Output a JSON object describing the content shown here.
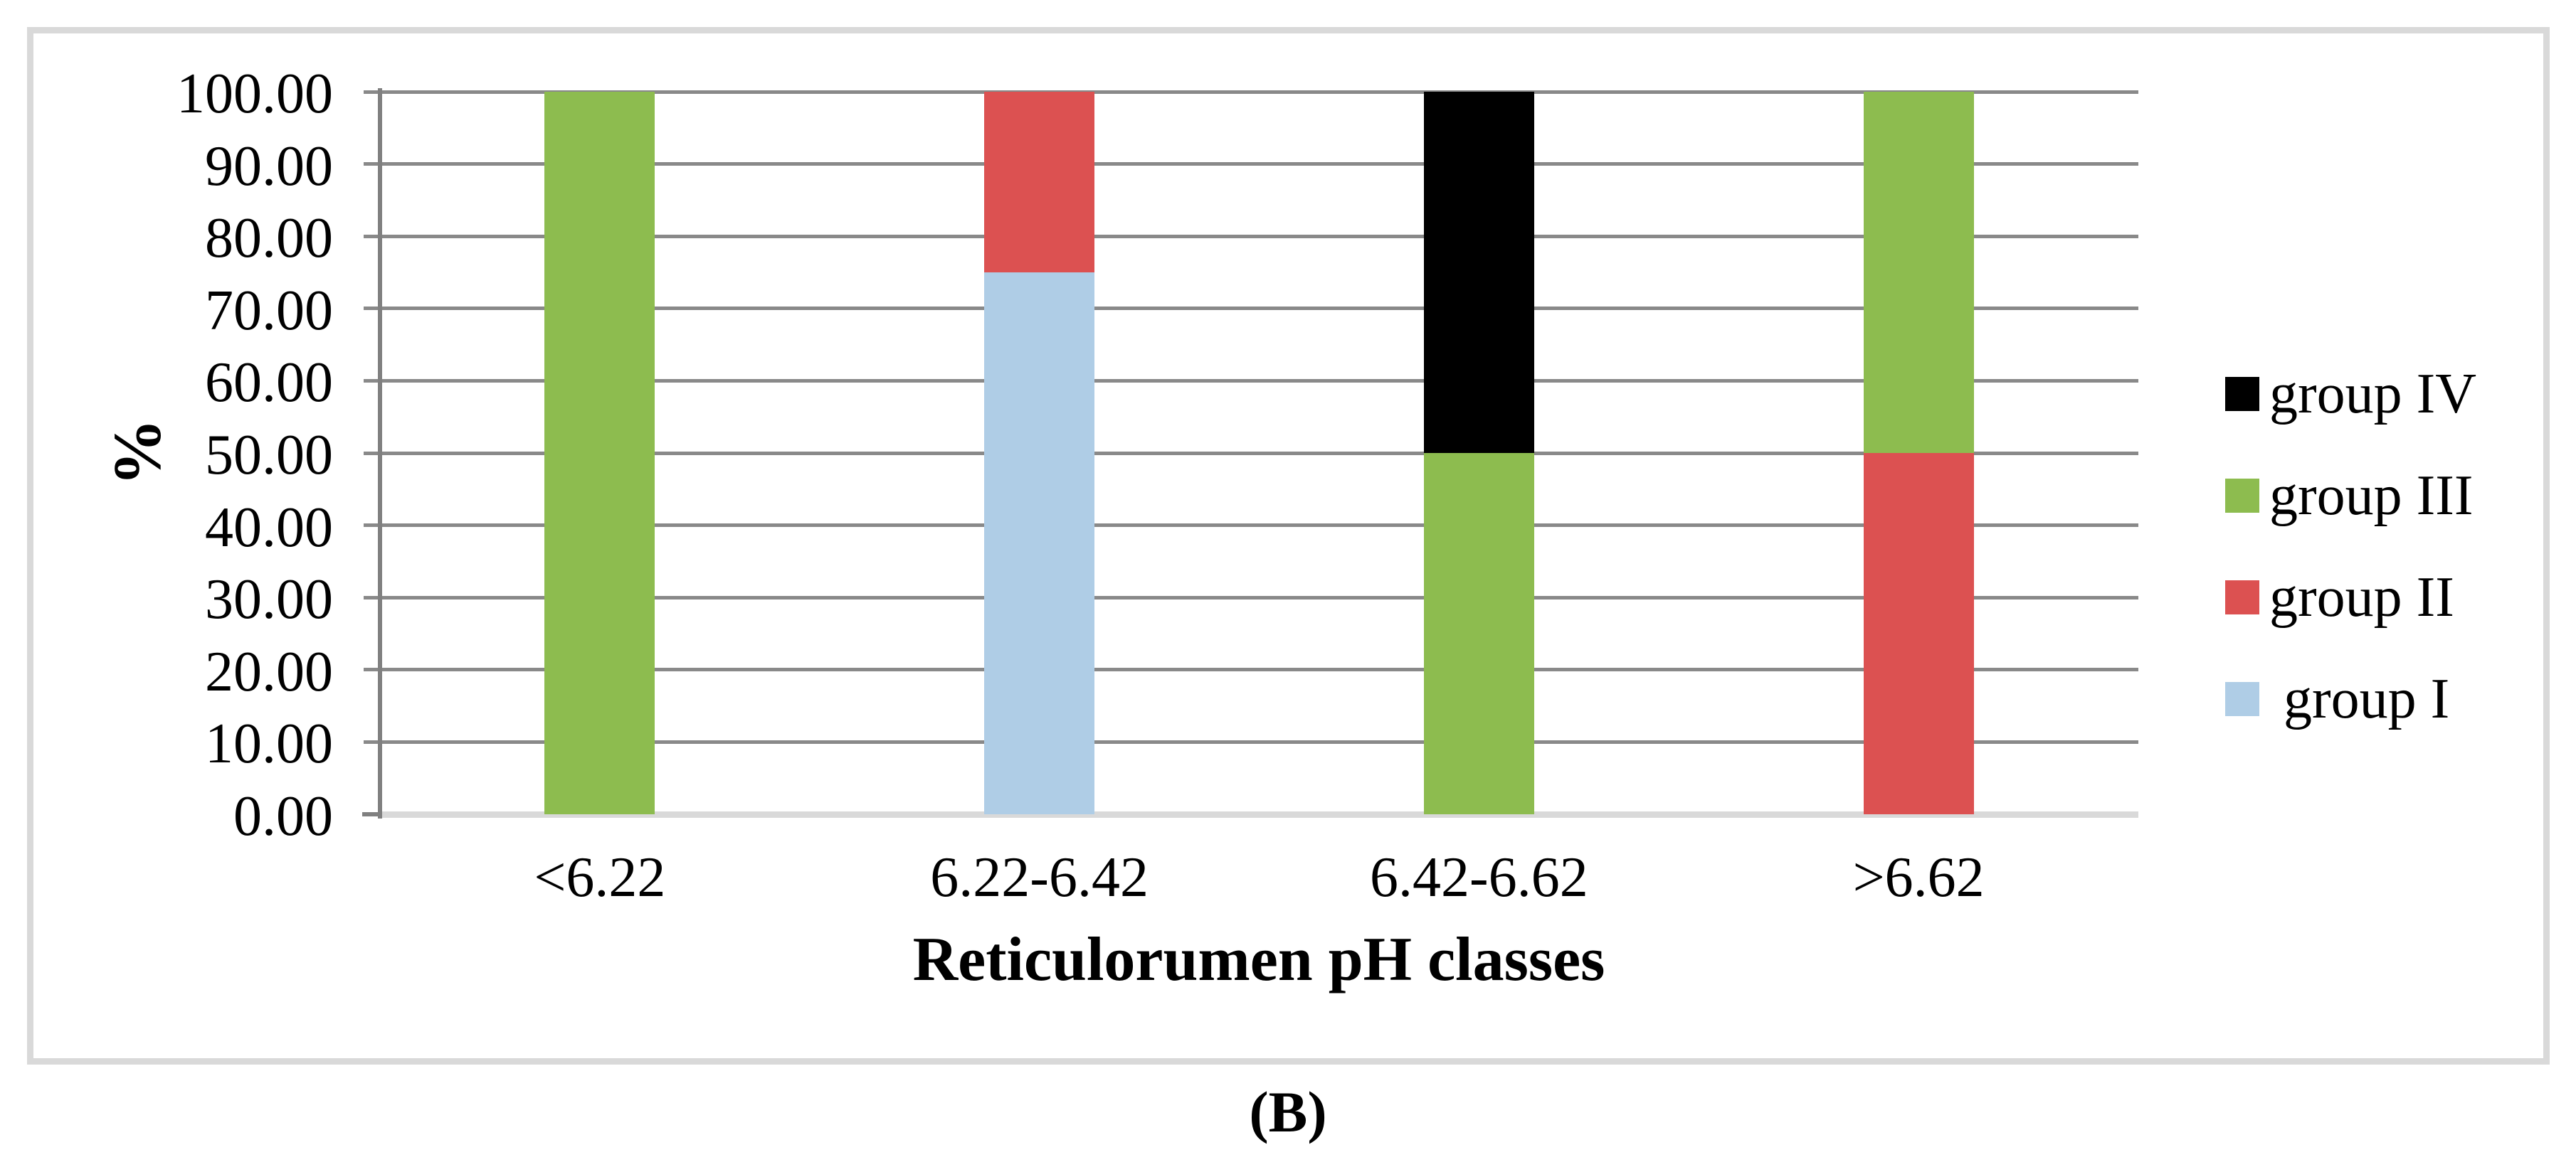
{
  "figure": {
    "caption": "(B)"
  },
  "chart_data": {
    "type": "bar",
    "subtype": "stacked-percent",
    "title": "",
    "xlabel": "Reticulorumen pH classes",
    "ylabel": "%",
    "ylim": [
      0,
      100
    ],
    "ytick_step": 10,
    "ytick_labels": [
      "100.00",
      "90.00",
      "80.00",
      "70.00",
      "60.00",
      "50.00",
      "40.00",
      "30.00",
      "20.00",
      "10.00",
      "0.00"
    ],
    "categories": [
      "<6.22",
      "6.22-6.42",
      "6.42-6.62",
      ">6.62"
    ],
    "series": [
      {
        "name": "group I",
        "color": "#AFCDE6",
        "values": [
          0,
          75,
          0,
          0
        ]
      },
      {
        "name": "group II",
        "color": "#DC5151",
        "values": [
          0,
          25,
          0,
          50
        ]
      },
      {
        "name": "group III",
        "color": "#8DBC4F",
        "values": [
          100,
          0,
          50,
          50
        ]
      },
      {
        "name": "group IV",
        "color": "#000000",
        "values": [
          0,
          0,
          50,
          0
        ]
      }
    ],
    "legend": {
      "position": "right",
      "entries": [
        {
          "label": "group IV",
          "color": "#000000"
        },
        {
          "label": "group III",
          "color": "#8DBC4F"
        },
        {
          "label": "group II",
          "color": "#DC5151"
        },
        {
          "label": " group I",
          "color": "#AFCDE6"
        }
      ]
    },
    "grid": true
  },
  "colors": {
    "background": "#FFFFFF",
    "frame_border": "#D9D9D9",
    "gridline": "#898989",
    "axis_line": "#808080",
    "baseline": "#D9D9D9",
    "baseline_tick": "#808080",
    "text": "#000000"
  }
}
